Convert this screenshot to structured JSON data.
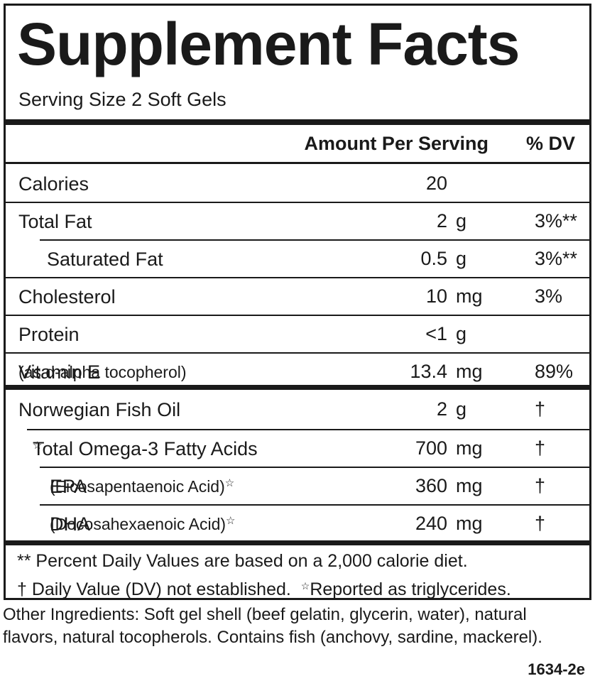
{
  "title": "Supplement Facts",
  "serving_size": "Serving Size 2 Soft Gels",
  "header": {
    "amount": "Amount Per Serving",
    "dv": "% DV"
  },
  "rows": [
    {
      "name": "Calories",
      "amount": "20"
    },
    {
      "name": "Total Fat",
      "amount": "2",
      "unit": "g",
      "dv": "3%**"
    },
    {
      "name": "Saturated Fat",
      "amount": "0.5",
      "unit": "g",
      "dv": "3%**"
    },
    {
      "name": "Cholesterol",
      "amount": "10",
      "unit": "mg",
      "dv": "3%"
    },
    {
      "name": "Protein",
      "amount": "<1",
      "unit": "g"
    },
    {
      "name": "Vitamin E",
      "detail": "(as d-alpha tocopherol)",
      "amount": "13.4",
      "unit": "mg",
      "dv": "89%"
    },
    {
      "name": "Norwegian Fish Oil",
      "amount": "2",
      "unit": "g",
      "dv": "†"
    },
    {
      "name": "Total Omega-3 Fatty Acids",
      "marker": "☆",
      "amount": "700",
      "unit": "mg",
      "dv": "†"
    },
    {
      "name": "EPA",
      "detail": "(Eicosapentaenoic Acid)",
      "marker": "☆",
      "amount": "360",
      "unit": "mg",
      "dv": "†"
    },
    {
      "name": "DHA",
      "detail": "(Docosahexaenoic Acid)",
      "marker": "☆",
      "amount": "240",
      "unit": "mg",
      "dv": "†"
    }
  ],
  "footnotes": {
    "percent_dv": "** Percent Daily Values are based on a 2,000 calorie diet.",
    "not_established": "† Daily Value (DV) not established.",
    "triglycerides_marker": "☆",
    "triglycerides": "Reported as triglycerides."
  },
  "other_ingredients": [
    "Other Ingredients: Soft gel shell (beef gelatin, glycerin, water), natural",
    "flavors, natural tocopherols. Contains fish (anchovy, sardine, mackerel)."
  ],
  "code": "1634-2e"
}
